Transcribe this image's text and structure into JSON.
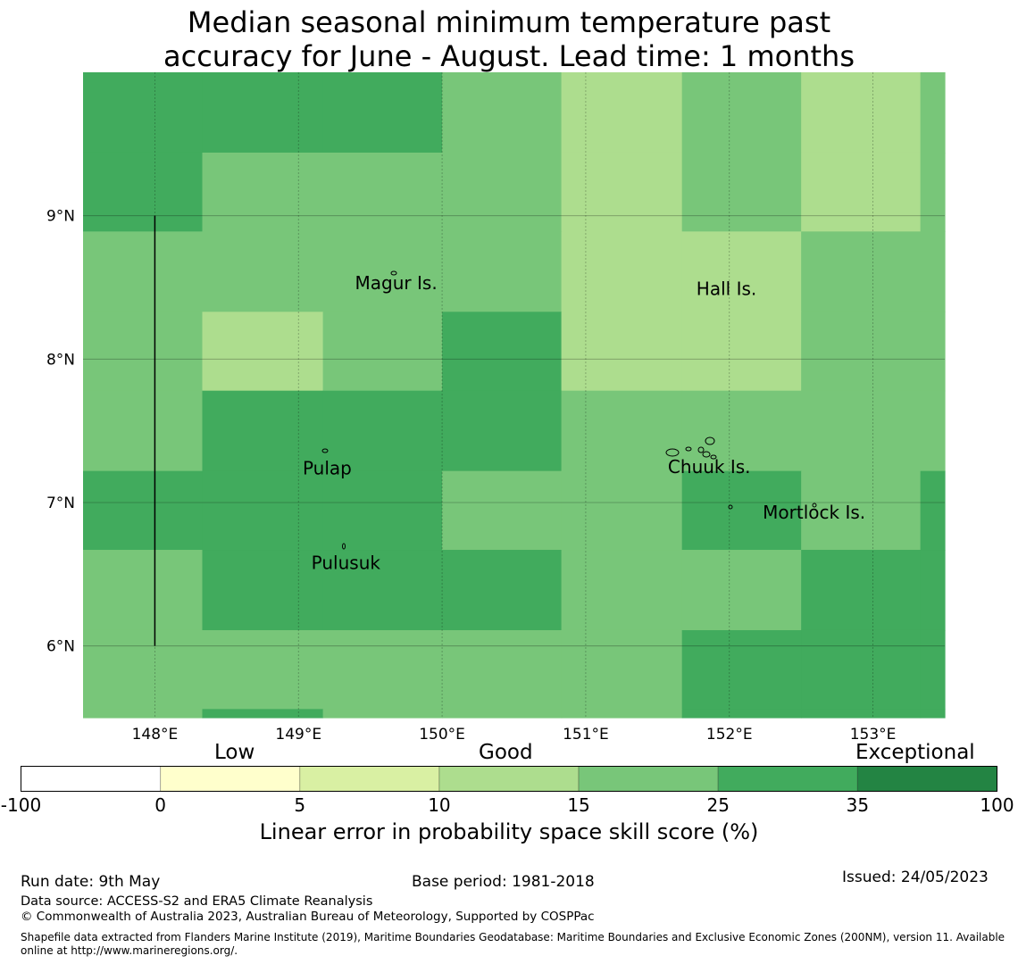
{
  "title": {
    "line1": "Median seasonal minimum temperature past",
    "line2": "accuracy for June - August. Lead time: 1 months"
  },
  "map": {
    "lon_range": [
      147.5,
      153.5
    ],
    "lat_range": [
      5.5,
      10.0
    ],
    "lon_ticks": [
      148,
      149,
      150,
      151,
      152,
      153
    ],
    "lon_tick_labels": [
      "148°E",
      "149°E",
      "150°E",
      "151°E",
      "152°E",
      "153°E"
    ],
    "lat_ticks": [
      6,
      7,
      8,
      9
    ],
    "lat_tick_labels": [
      "6°N",
      "7°N",
      "8°N",
      "9°N"
    ],
    "grid_lon_edges": [
      147.5,
      148.33,
      149.17,
      150.0,
      150.83,
      151.67,
      152.5,
      153.33,
      153.5
    ],
    "grid_lat_edges": [
      10.0,
      9.44,
      8.89,
      8.33,
      7.78,
      7.22,
      6.67,
      6.11,
      5.56,
      5.5
    ],
    "cell_categories": [
      [
        5,
        5,
        5,
        4,
        3,
        4,
        3,
        4
      ],
      [
        5,
        4,
        4,
        4,
        3,
        4,
        3,
        4
      ],
      [
        4,
        4,
        4,
        4,
        3,
        3,
        4,
        4
      ],
      [
        4,
        3,
        4,
        5,
        3,
        3,
        4,
        4
      ],
      [
        4,
        5,
        5,
        5,
        4,
        4,
        4,
        4
      ],
      [
        5,
        5,
        5,
        4,
        4,
        5,
        4,
        5
      ],
      [
        4,
        5,
        5,
        5,
        4,
        4,
        5,
        5
      ],
      [
        4,
        4,
        4,
        4,
        4,
        5,
        5,
        5
      ],
      [
        4,
        5,
        4,
        4,
        4,
        5,
        5,
        5
      ]
    ],
    "places": [
      {
        "name": "Magur Is.",
        "lon": 149.68,
        "lat": 8.53
      },
      {
        "name": "Hall Is.",
        "lon": 151.98,
        "lat": 8.49
      },
      {
        "name": "Pulap",
        "lon": 149.2,
        "lat": 7.24
      },
      {
        "name": "Chuuk Is.",
        "lon": 151.86,
        "lat": 7.25
      },
      {
        "name": "Mortlock Is.",
        "lon": 152.59,
        "lat": 6.93
      },
      {
        "name": "Pulusuk",
        "lon": 149.33,
        "lat": 6.58
      }
    ],
    "boundary_line": {
      "lon": 148.0,
      "lat_from": 6.0,
      "lat_to": 9.0
    }
  },
  "legend": {
    "category_labels": [
      "Low",
      "Good",
      "Exceptional"
    ],
    "bins": [
      -100,
      0,
      5,
      10,
      15,
      25,
      35,
      100
    ],
    "tick_labels": [
      "-100",
      "0",
      "5",
      "10",
      "15",
      "25",
      "35",
      "100"
    ],
    "colors": [
      "#ffffff",
      "#ffffcc",
      "#d9f0a3",
      "#addd8e",
      "#78c679",
      "#41ab5d",
      "#238443"
    ],
    "title": "Linear error in probability space skill score (%)"
  },
  "footer": {
    "run_date": "Run date: 9th May",
    "base_period": "Base period: 1981-2018",
    "issued": "Issued: 24/05/2023",
    "data_source": "Data source: ACCESS-S2 and ERA5 Climate Reanalysis",
    "copyright": "© Commonwealth of Australia 2023, Australian Bureau of Meteorology, Supported by COSPPac",
    "shapefile_line1": "Shapefile data extracted from Flanders Marine Institute (2019), Maritime Boundaries Geodatabase: Maritime Boundaries and Exclusive Economic Zones (200NM), version 11. Available",
    "shapefile_line2": "online at http://www.marineregions.org/."
  }
}
